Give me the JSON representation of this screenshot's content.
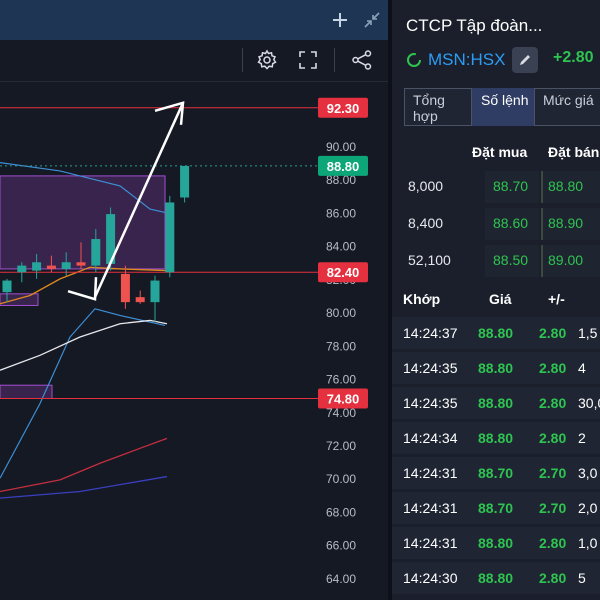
{
  "chart_panel": {
    "topbar_icons": [
      "plus-icon",
      "collapse-icon"
    ],
    "toolbar_icons": [
      "settings-icon",
      "fullscreen-icon",
      "share-icon"
    ]
  },
  "colors": {
    "up": "#26a69a",
    "down": "#ef5350",
    "level_red": "#e5303f",
    "price_green": "#2ec450",
    "accent_blue": "#2f9cf4"
  },
  "chart_data": {
    "type": "candlestick",
    "y_ticks": [
      "90.00",
      "88.00",
      "86.00",
      "84.00",
      "82.00",
      "80.00",
      "78.00",
      "76.00",
      "74.00",
      "72.00",
      "70.00",
      "68.00",
      "66.00",
      "64.00"
    ],
    "ylim": [
      63.5,
      93.5
    ],
    "candles": [
      {
        "open": 81.2,
        "high": 82.0,
        "low": 80.6,
        "close": 81.9
      },
      {
        "open": 82.4,
        "high": 83.0,
        "low": 81.8,
        "close": 82.8
      },
      {
        "open": 82.5,
        "high": 83.5,
        "low": 82.0,
        "close": 83.0
      },
      {
        "open": 82.8,
        "high": 83.4,
        "low": 82.4,
        "close": 82.6
      },
      {
        "open": 82.6,
        "high": 83.6,
        "low": 82.2,
        "close": 83.0
      },
      {
        "open": 83.0,
        "high": 84.2,
        "low": 82.6,
        "close": 82.8
      },
      {
        "open": 82.8,
        "high": 85.0,
        "low": 82.4,
        "close": 84.4
      },
      {
        "open": 82.9,
        "high": 86.3,
        "low": 82.5,
        "close": 85.9
      },
      {
        "open": 82.3,
        "high": 82.8,
        "low": 80.2,
        "close": 80.6
      },
      {
        "open": 80.9,
        "high": 81.3,
        "low": 80.5,
        "close": 80.6
      },
      {
        "open": 80.6,
        "high": 82.2,
        "low": 79.4,
        "close": 81.9
      },
      {
        "open": 82.4,
        "high": 87.0,
        "low": 82.1,
        "close": 86.6
      },
      {
        "open": 86.9,
        "high": 88.8,
        "low": 86.6,
        "close": 88.8
      }
    ],
    "levels": [
      {
        "label": "92.30",
        "value": 92.3,
        "color": "#e5303f"
      },
      {
        "label": "88.80",
        "value": 88.8,
        "color": "#0ca678"
      },
      {
        "label": "82.40",
        "value": 82.4,
        "color": "#e5303f"
      },
      {
        "label": "74.80",
        "value": 74.8,
        "color": "#e5303f"
      }
    ],
    "bollinger_upper": [
      [
        0,
        89.0
      ],
      [
        60,
        88.5
      ],
      [
        120,
        87.6
      ],
      [
        150,
        86.2
      ],
      [
        165,
        86.0
      ]
    ],
    "bollinger_lower": [
      [
        0,
        70.0
      ],
      [
        40,
        74.5
      ],
      [
        70,
        78.5
      ],
      [
        95,
        80.2
      ],
      [
        120,
        79.8
      ],
      [
        165,
        79.2
      ]
    ],
    "ma_white": [
      [
        0,
        76.5
      ],
      [
        40,
        77.4
      ],
      [
        80,
        78.5
      ],
      [
        120,
        79.3
      ],
      [
        150,
        79.5
      ],
      [
        167,
        79.3
      ]
    ],
    "ma_orange": [
      [
        0,
        80.5
      ],
      [
        30,
        81.0
      ],
      [
        60,
        82.0
      ],
      [
        90,
        82.7
      ],
      [
        120,
        82.6
      ],
      [
        167,
        82.5
      ]
    ],
    "ma_red": [
      [
        0,
        69.2
      ],
      [
        60,
        69.9
      ],
      [
        100,
        70.9
      ],
      [
        140,
        71.8
      ],
      [
        167,
        72.4
      ]
    ],
    "ma_navy": [
      [
        0,
        68.8
      ],
      [
        80,
        69.2
      ],
      [
        167,
        70.1
      ]
    ]
  },
  "stock": {
    "title": "CTCP Tập đoàn...",
    "ticker": "MSN:HSX",
    "change": "+2.80"
  },
  "tabs": [
    {
      "label": "Tổng hợp",
      "active": false
    },
    {
      "label": "Số lệnh",
      "active": true
    },
    {
      "label": "Mức giá",
      "active": false
    }
  ],
  "orderbook": {
    "bid_header": "Đặt mua",
    "ask_header": "Đặt bán",
    "rows": [
      {
        "volume": "8,000",
        "bid": "88.70",
        "ask": "88.80"
      },
      {
        "volume": "8,400",
        "bid": "88.60",
        "ask": "88.90"
      },
      {
        "volume": "52,100",
        "bid": "88.50",
        "ask": "89.00"
      }
    ]
  },
  "matches": {
    "headers": {
      "time": "Khớp",
      "price": "Giá",
      "change": "+/-"
    },
    "rows": [
      {
        "time": "14:24:37",
        "price": "88.80",
        "change": "2.80",
        "volume": "1,5"
      },
      {
        "time": "14:24:35",
        "price": "88.80",
        "change": "2.80",
        "volume": "4"
      },
      {
        "time": "14:24:35",
        "price": "88.80",
        "change": "2.80",
        "volume": "30,0"
      },
      {
        "time": "14:24:34",
        "price": "88.80",
        "change": "2.80",
        "volume": "2"
      },
      {
        "time": "14:24:31",
        "price": "88.70",
        "change": "2.70",
        "volume": "3,0"
      },
      {
        "time": "14:24:31",
        "price": "88.70",
        "change": "2.70",
        "volume": "2,0"
      },
      {
        "time": "14:24:31",
        "price": "88.80",
        "change": "2.80",
        "volume": "1,0"
      },
      {
        "time": "14:24:30",
        "price": "88.80",
        "change": "2.80",
        "volume": "5"
      }
    ]
  }
}
